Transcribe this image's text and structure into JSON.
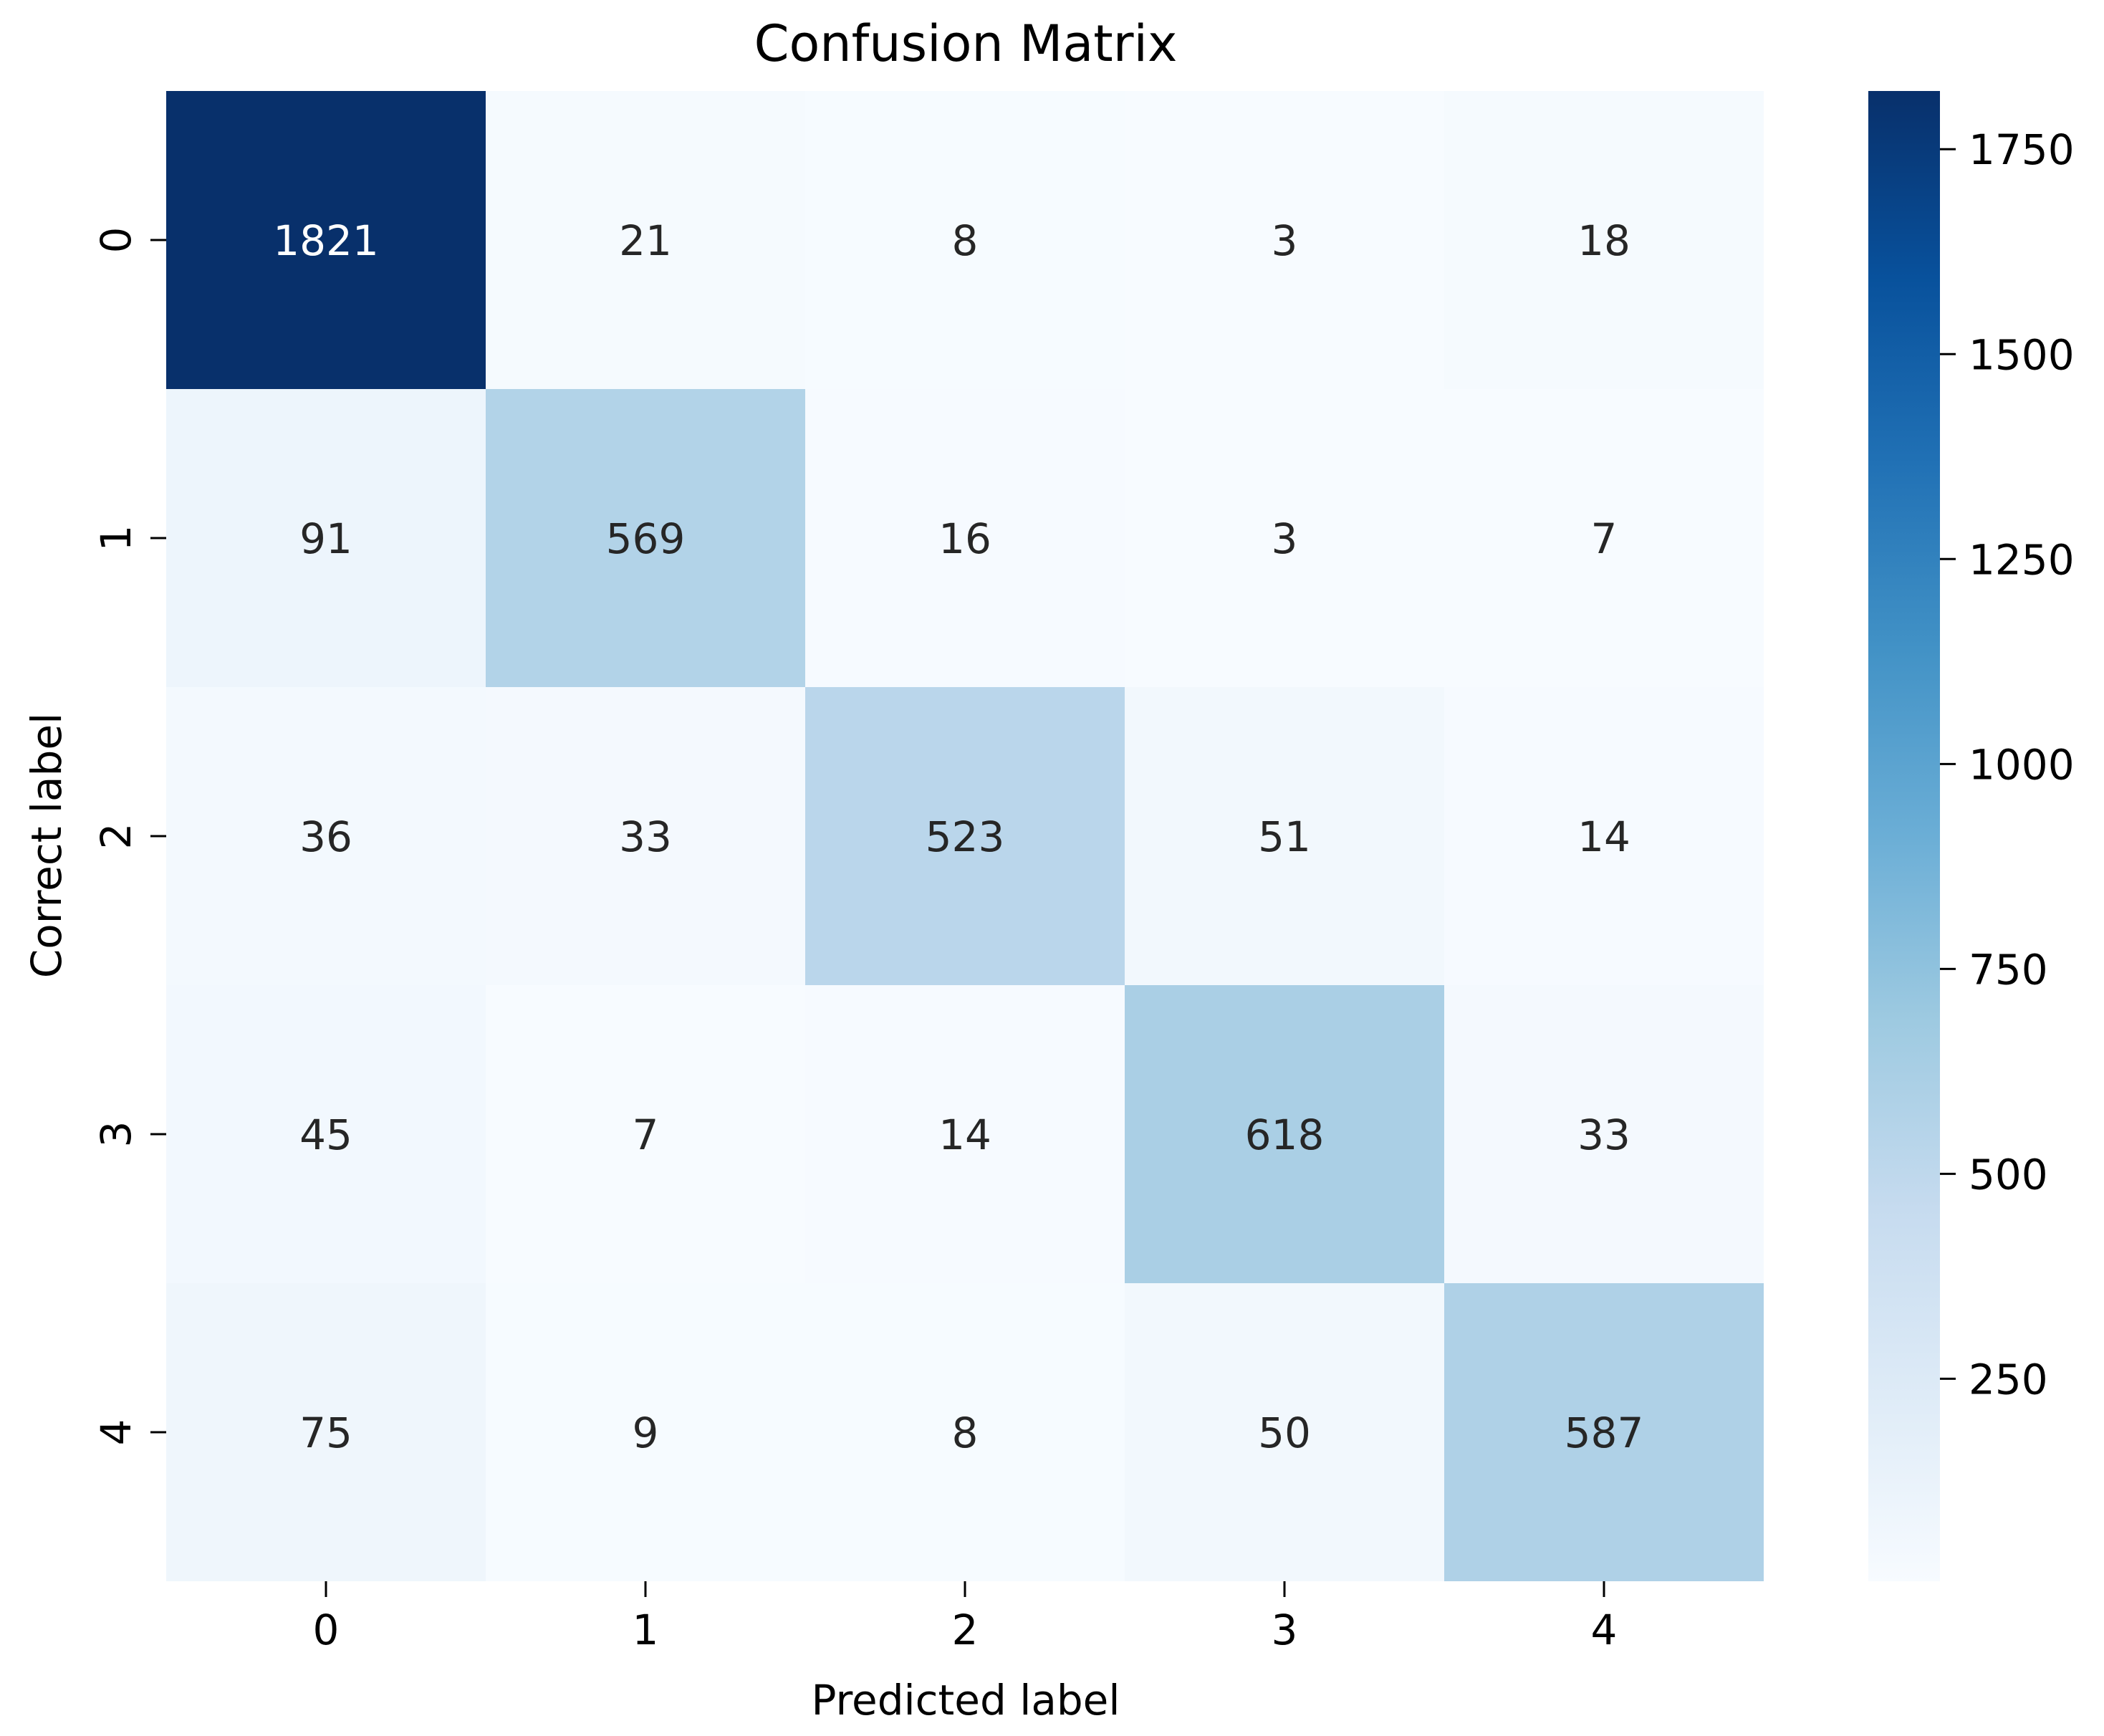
{
  "chart_data": {
    "type": "heatmap",
    "title": "Confusion Matrix",
    "xlabel": "Predicted label",
    "ylabel": "Correct label",
    "x_categories": [
      "0",
      "1",
      "2",
      "3",
      "4"
    ],
    "y_categories": [
      "0",
      "1",
      "2",
      "3",
      "4"
    ],
    "values": [
      [
        1821,
        21,
        8,
        3,
        18
      ],
      [
        91,
        569,
        16,
        3,
        7
      ],
      [
        36,
        33,
        523,
        51,
        14
      ],
      [
        45,
        7,
        14,
        618,
        33
      ],
      [
        75,
        9,
        8,
        50,
        587
      ]
    ],
    "colormap": "Blues",
    "colorbar": {
      "range": [
        3,
        1821
      ],
      "ticks": [
        250,
        500,
        750,
        1000,
        1250,
        1500,
        1750
      ],
      "tick_labels": [
        "250",
        "500",
        "750",
        "1000",
        "1250",
        "1500",
        "1750"
      ]
    },
    "colors": {
      "low": "#f7fbff",
      "high": "#08306b",
      "text_dark": "#262626",
      "text_light": "#ffffff"
    }
  }
}
